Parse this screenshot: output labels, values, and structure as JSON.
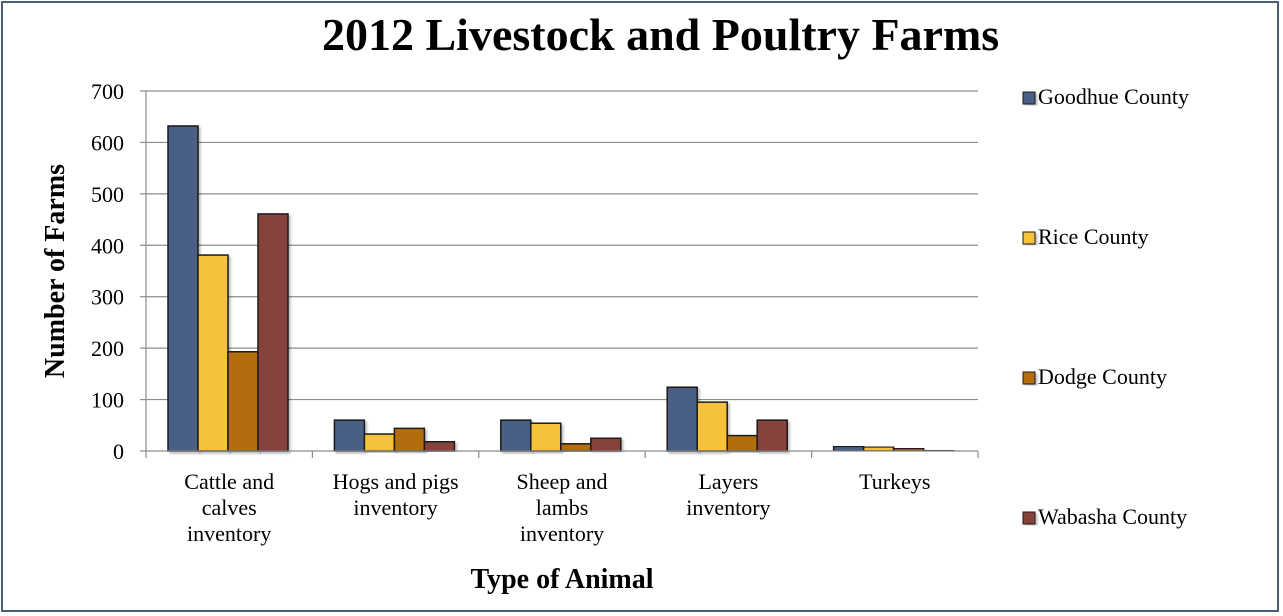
{
  "chart_data": {
    "type": "bar",
    "title": "2012 Livestock and Poultry Farms",
    "xlabel": "Type of Animal",
    "ylabel": "Number of Farms",
    "ylim": [
      0,
      700
    ],
    "yticks": [
      0,
      100,
      200,
      300,
      400,
      500,
      600,
      700
    ],
    "grid": true,
    "legend": "right",
    "categories": [
      [
        "Cattle and",
        "calves",
        "inventory"
      ],
      [
        "Hogs and pigs",
        "inventory"
      ],
      [
        "Sheep and",
        "lambs",
        "inventory"
      ],
      [
        "Layers",
        "inventory"
      ],
      [
        "Turkeys"
      ]
    ],
    "series": [
      {
        "name": "Goodhue County",
        "color": "#4a5f85",
        "values": [
          632,
          60,
          60,
          124,
          9
        ]
      },
      {
        "name": "Rice County",
        "color": "#f6c13a",
        "values": [
          381,
          33,
          54,
          95,
          8
        ]
      },
      {
        "name": "Dodge County",
        "color": "#b26d09",
        "values": [
          193,
          44,
          14,
          30,
          5
        ]
      },
      {
        "name": "Wabasha County",
        "color": "#87433a",
        "values": [
          461,
          18,
          25,
          60,
          1
        ]
      }
    ]
  }
}
